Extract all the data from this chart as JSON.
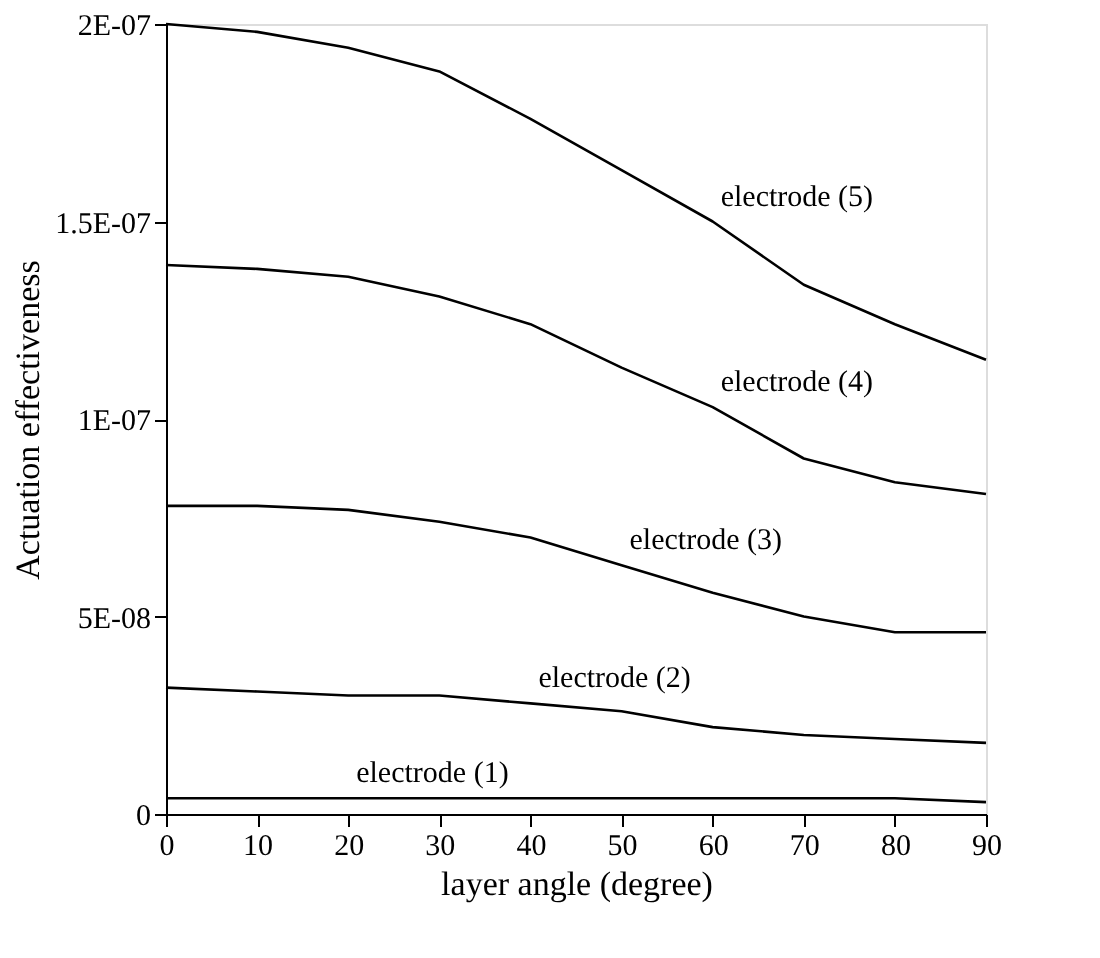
{
  "chart_data": {
    "type": "line",
    "xlabel": "layer angle (degree)",
    "ylabel": "Actuation effectiveness",
    "x": [
      0,
      10,
      20,
      30,
      40,
      50,
      60,
      70,
      80,
      90
    ],
    "series": [
      {
        "color": "#000000",
        "values": [
          4e-09,
          4e-09,
          4e-09,
          4e-09,
          4e-09,
          4e-09,
          4e-09,
          4e-09,
          4e-09,
          3e-09
        ]
      },
      {
        "color": "#000000",
        "values": [
          3.2e-08,
          3.1e-08,
          3e-08,
          3e-08,
          2.8e-08,
          2.6e-08,
          2.2e-08,
          2e-08,
          1.9e-08,
          1.8e-08
        ]
      },
      {
        "color": "#000000",
        "values": [
          7.8e-08,
          7.8e-08,
          7.7e-08,
          7.4e-08,
          7e-08,
          6.3e-08,
          5.6e-08,
          5e-08,
          4.6e-08,
          4.6e-08
        ]
      },
      {
        "color": "#000000",
        "values": [
          1.39e-07,
          1.38e-07,
          1.36e-07,
          1.31e-07,
          1.24e-07,
          1.13e-07,
          1.03e-07,
          9e-08,
          8.4e-08,
          8.1e-08
        ]
      },
      {
        "color": "#000000",
        "values": [
          2e-07,
          1.98e-07,
          1.94e-07,
          1.88e-07,
          1.76e-07,
          1.63e-07,
          1.5e-07,
          1.34e-07,
          1.24e-07,
          1.15e-07
        ]
      }
    ],
    "annotations": [
      {
        "text": "electrode (1)",
        "x": 20,
        "y": 4e-09
      },
      {
        "text": "electrode (2)",
        "x": 40,
        "y": 2.8e-08
      },
      {
        "text": "electrode (3)",
        "x": 50,
        "y": 6.3e-08
      },
      {
        "text": "electrode (4)",
        "x": 60,
        "y": 1.03e-07
      },
      {
        "text": "electrode (5)",
        "x": 60,
        "y": 1.5e-07
      }
    ],
    "xlim": [
      0,
      90
    ],
    "xticks": [
      0,
      10,
      20,
      30,
      40,
      50,
      60,
      70,
      80,
      90
    ],
    "ylim": [
      0,
      2e-07
    ],
    "yticks": [
      {
        "value": 0,
        "label": "0"
      },
      {
        "value": 5e-08,
        "label": "5E-08"
      },
      {
        "value": 1e-07,
        "label": "1E-07"
      },
      {
        "value": 1.5e-07,
        "label": "1.5E-07"
      },
      {
        "value": 2e-07,
        "label": "2E-07"
      }
    ],
    "grid": false,
    "marker": "none",
    "line_style": "solid"
  }
}
